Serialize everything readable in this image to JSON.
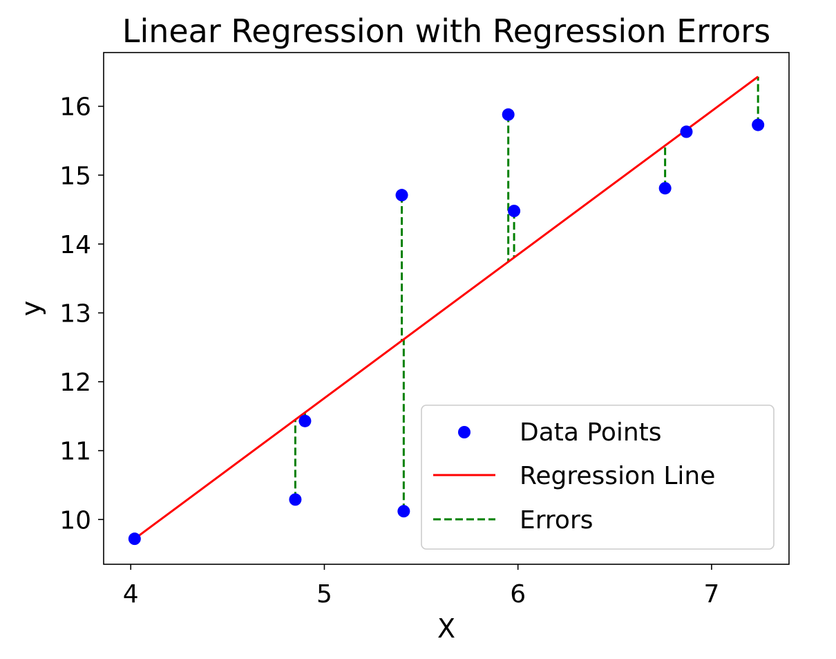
{
  "chart_data": {
    "type": "scatter",
    "title": "Linear Regression with Regression Errors",
    "xlabel": "X",
    "ylabel": "y",
    "xlim": [
      3.86,
      7.4
    ],
    "ylim": [
      9.35,
      16.78
    ],
    "x_ticks": [
      4,
      5,
      6,
      7
    ],
    "y_ticks": [
      10,
      11,
      12,
      13,
      14,
      15,
      16
    ],
    "grid": false,
    "legend_position": "lower-right",
    "legend": [
      {
        "label": "Data Points",
        "type": "marker",
        "color": "#0000ff"
      },
      {
        "label": "Regression Line",
        "type": "line",
        "color": "#ff0000"
      },
      {
        "label": "Errors",
        "type": "dashed-line",
        "color": "#008000"
      }
    ],
    "series": [
      {
        "name": "Data Points",
        "kind": "scatter",
        "color": "#0000ff",
        "points": [
          {
            "x": 4.02,
            "y": 9.72
          },
          {
            "x": 4.85,
            "y": 10.29
          },
          {
            "x": 4.9,
            "y": 11.43
          },
          {
            "x": 5.4,
            "y": 14.71
          },
          {
            "x": 5.41,
            "y": 10.12
          },
          {
            "x": 5.95,
            "y": 15.88
          },
          {
            "x": 5.98,
            "y": 14.48
          },
          {
            "x": 6.76,
            "y": 14.81
          },
          {
            "x": 6.87,
            "y": 15.63
          },
          {
            "x": 7.24,
            "y": 15.73
          }
        ]
      },
      {
        "name": "Regression Line",
        "kind": "line",
        "color": "#ff0000",
        "points": [
          {
            "x": 4.02,
            "y": 9.72
          },
          {
            "x": 7.24,
            "y": 16.43
          }
        ]
      },
      {
        "name": "Errors",
        "kind": "error-lines",
        "color": "#008000",
        "style": "dashed"
      }
    ]
  }
}
